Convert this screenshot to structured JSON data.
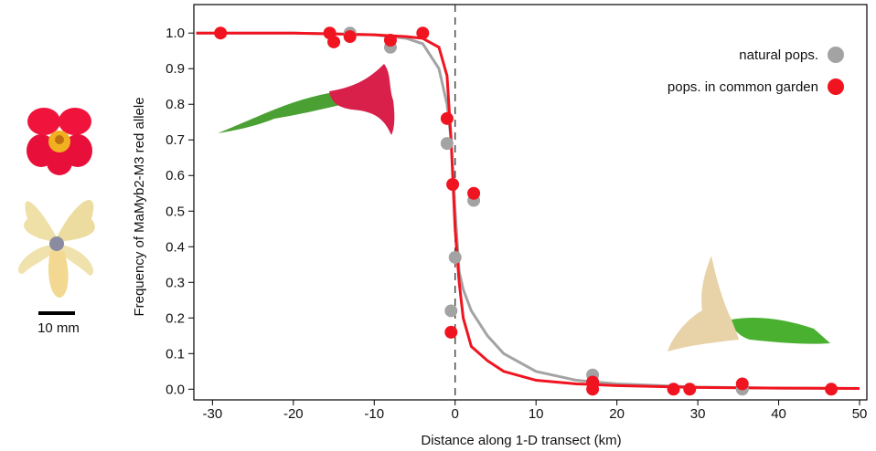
{
  "chart_data": {
    "type": "scatter",
    "xlabel": "Distance along 1-D transect (km)",
    "ylabel": "Frequency of MaMyb2-M3 red allele",
    "xlim": [
      -32.3,
      50.9
    ],
    "ylim": [
      -0.03,
      1.08
    ],
    "xticks": [
      -30,
      -20,
      -10,
      0,
      10,
      20,
      30,
      40,
      50
    ],
    "yticks": [
      {
        "value": 0,
        "label": "0.0"
      },
      0.1,
      0.2,
      0.3,
      0.4,
      0.5,
      0.6,
      0.7,
      0.8,
      0.9,
      {
        "value": 1,
        "label": "1.0"
      }
    ],
    "reference_line_x": 0,
    "legend": "upper right",
    "series": [
      {
        "name": "natural pops.",
        "color": "#a3a3a3",
        "mode": "markers",
        "x": [
          -13,
          -8,
          -1,
          0,
          -0.5,
          2.3,
          17,
          35.5
        ],
        "values": [
          1.0,
          0.96,
          0.69,
          0.37,
          0.22,
          0.53,
          0.04,
          0.0
        ]
      },
      {
        "name": "pops. in common garden",
        "color": "#f01420",
        "mode": "markers",
        "x": [
          -29,
          -15.5,
          -15,
          -13,
          -8,
          -4,
          -1,
          -0.3,
          2.3,
          -0.5,
          17,
          17,
          27,
          29,
          35.5,
          46.5
        ],
        "values": [
          1.0,
          1.0,
          0.975,
          0.99,
          0.98,
          1.0,
          0.76,
          0.575,
          0.55,
          0.16,
          0.0,
          0.02,
          0.0,
          0.0,
          0.015,
          0.0
        ]
      },
      {
        "color": "#a3a3a3",
        "mode": "line",
        "x": [
          -32,
          -20,
          -10,
          -6,
          -4,
          -2,
          -1,
          -0.5,
          0,
          0.5,
          1,
          2,
          4,
          6,
          10,
          15,
          20,
          30,
          40,
          50
        ],
        "values": [
          1.0,
          1.0,
          0.995,
          0.985,
          0.97,
          0.9,
          0.8,
          0.7,
          0.5,
          0.33,
          0.28,
          0.22,
          0.15,
          0.1,
          0.05,
          0.025,
          0.015,
          0.006,
          0.003,
          0.002
        ]
      },
      {
        "color": "#f01420",
        "mode": "line",
        "x": [
          -32,
          -20,
          -10,
          -6,
          -4,
          -2,
          -1,
          -0.5,
          0,
          0.5,
          1,
          2,
          4,
          6,
          10,
          15,
          20,
          30,
          40,
          50
        ],
        "values": [
          1.0,
          1.0,
          0.995,
          0.99,
          0.985,
          0.96,
          0.88,
          0.7,
          0.45,
          0.3,
          0.2,
          0.12,
          0.08,
          0.05,
          0.025,
          0.015,
          0.01,
          0.005,
          0.003,
          0.002
        ]
      }
    ]
  },
  "scale_bar_label": "10 mm"
}
